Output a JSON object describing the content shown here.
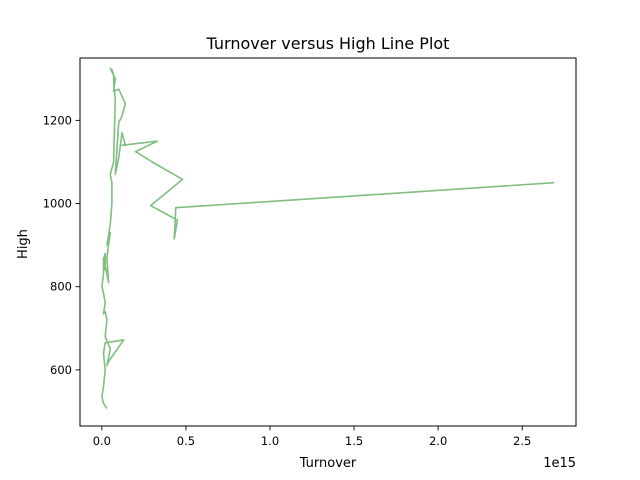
{
  "chart_data": {
    "type": "line",
    "title": "Turnover versus High Line Plot",
    "xlabel": "Turnover",
    "ylabel": "High",
    "x_offset_label": "1e15",
    "xlim": [
      -0.13,
      2.82
    ],
    "ylim": [
      465,
      1350
    ],
    "xticks": [
      0.0,
      0.5,
      1.0,
      1.5,
      2.0,
      2.5
    ],
    "xtick_labels": [
      "0.0",
      "0.5",
      "1.0",
      "1.5",
      "2.0",
      "2.5"
    ],
    "yticks": [
      600,
      800,
      1000,
      1200
    ],
    "ytick_labels": [
      "600",
      "800",
      "1000",
      "1200"
    ],
    "grid": false,
    "legend": "none",
    "color": "#7fbf7f",
    "series": [
      {
        "x": [
          0.03,
          0.01,
          0.0,
          0.01,
          0.02,
          0.01,
          0.02,
          0.13,
          0.04,
          0.03,
          0.05,
          0.02,
          0.03,
          0.02,
          0.01,
          0.02,
          0.01,
          0.0,
          0.01,
          0.01,
          0.02,
          0.02,
          0.01,
          0.02,
          0.04,
          0.03,
          0.05,
          0.03,
          0.05,
          0.06,
          0.06,
          0.05,
          0.07,
          0.08,
          0.07,
          0.07,
          0.06,
          0.05,
          0.08,
          0.07,
          0.1,
          0.14,
          0.12,
          0.1,
          0.08,
          0.1,
          0.12,
          0.14,
          0.12,
          0.33,
          0.2,
          0.3,
          0.48,
          0.29,
          0.45,
          0.43,
          0.44,
          2.69
        ],
        "y": [
          507,
          520,
          535,
          560,
          600,
          640,
          665,
          672,
          620,
          610,
          650,
          680,
          720,
          740,
          735,
          760,
          785,
          800,
          830,
          870,
          840,
          880,
          860,
          850,
          810,
          870,
          930,
          900,
          950,
          1000,
          1050,
          1070,
          1100,
          1250,
          1290,
          1310,
          1322,
          1325,
          1300,
          1270,
          1275,
          1240,
          1210,
          1195,
          1070,
          1110,
          1170,
          1140,
          1140,
          1150,
          1125,
          1100,
          1058,
          995,
          960,
          915,
          990,
          1050
        ]
      }
    ]
  }
}
